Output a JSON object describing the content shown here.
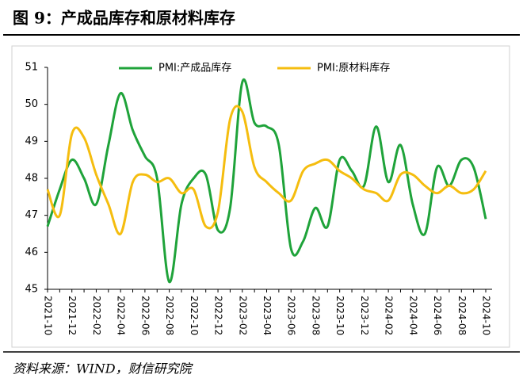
{
  "chart_data": {
    "type": "line",
    "title": "图 9：产成品库存和原材料库存",
    "source": "资料来源：WIND，财信研究院",
    "categories": [
      "2021-10",
      null,
      "2021-12",
      null,
      "2022-02",
      null,
      "2022-04",
      null,
      "2022-06",
      null,
      "2022-08",
      null,
      "2022-10",
      null,
      "2022-12",
      null,
      "2023-02",
      null,
      "2023-04",
      null,
      "2023-06",
      null,
      "2023-08",
      null,
      "2023-10",
      null,
      "2023-12",
      null,
      "2024-02",
      null,
      "2024-04",
      null,
      "2024-06",
      null,
      "2024-08",
      null,
      "2024-10"
    ],
    "series": [
      {
        "name": "PMI:产成品库存",
        "color": "#1fa33a",
        "values": [
          46.7,
          47.7,
          48.5,
          48.0,
          47.3,
          48.9,
          50.3,
          49.3,
          48.6,
          48.0,
          45.2,
          47.3,
          48.0,
          48.1,
          46.6,
          47.2,
          50.6,
          49.5,
          49.4,
          48.9,
          46.1,
          46.3,
          47.2,
          46.7,
          48.5,
          48.2,
          47.8,
          49.4,
          47.9,
          48.9,
          47.3,
          46.5,
          48.3,
          47.8,
          48.5,
          48.3,
          46.9
        ]
      },
      {
        "name": "PMI:原材料库存",
        "color": "#f5bd0f",
        "values": [
          47.7,
          47.0,
          49.2,
          49.1,
          48.1,
          47.3,
          46.5,
          47.9,
          48.1,
          47.9,
          48.0,
          47.6,
          47.7,
          46.7,
          47.1,
          49.6,
          49.8,
          48.3,
          47.9,
          47.6,
          47.4,
          48.2,
          48.4,
          48.5,
          48.2,
          48.0,
          47.7,
          47.6,
          47.4,
          48.1,
          48.1,
          47.8,
          47.6,
          47.8,
          47.6,
          47.7,
          48.2
        ]
      }
    ],
    "ylim": [
      45,
      51
    ],
    "yticks": [
      45,
      46,
      47,
      48,
      49,
      50,
      51
    ],
    "legend": "top"
  }
}
